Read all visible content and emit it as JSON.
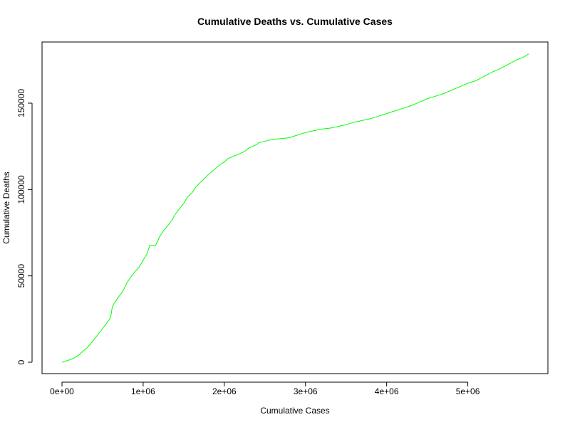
{
  "chart_data": {
    "type": "line",
    "title": "Cumulative Deaths vs. Cumulative Cases",
    "xlabel": "Cumulative Cases",
    "ylabel": "Cumulative Deaths",
    "xlim": [
      0,
      5750000
    ],
    "ylim": [
      0,
      178000
    ],
    "grid": false,
    "series": [
      {
        "color": "#00ff00",
        "x": [
          0,
          100000,
          150000,
          200000,
          250000,
          300000,
          350000,
          400000,
          450000,
          500000,
          550000,
          600000,
          620000,
          640000,
          700000,
          750000,
          800000,
          850000,
          900000,
          950000,
          1000000,
          1050000,
          1080000,
          1100000,
          1150000,
          1180000,
          1200000,
          1250000,
          1300000,
          1350000,
          1400000,
          1450000,
          1500000,
          1550000,
          1600000,
          1650000,
          1700000,
          1750000,
          1800000,
          1850000,
          1900000,
          1950000,
          2000000,
          2050000,
          2100000,
          2150000,
          2200000,
          2250000,
          2300000,
          2350000,
          2400000,
          2420000,
          2500000,
          2600000,
          2700000,
          2800000,
          2900000,
          3000000,
          3100000,
          3200000,
          3300000,
          3400000,
          3500000,
          3600000,
          3700000,
          3800000,
          3900000,
          4000000,
          4100000,
          4200000,
          4300000,
          4400000,
          4500000,
          4600000,
          4700000,
          4800000,
          4900000,
          5000000,
          5100000,
          5200000,
          5300000,
          5400000,
          5500000,
          5600000,
          5700000,
          5750000
        ],
        "values": [
          0,
          1500,
          2500,
          4000,
          6000,
          8000,
          10500,
          13500,
          16500,
          19500,
          22500,
          26000,
          32000,
          34000,
          38000,
          41000,
          46000,
          49500,
          52500,
          55000,
          59000,
          63000,
          67500,
          67800,
          67500,
          70000,
          72500,
          76000,
          79000,
          82000,
          86000,
          89000,
          92000,
          96000,
          98000,
          101500,
          104000,
          106000,
          108500,
          110500,
          112500,
          114500,
          116000,
          118000,
          119000,
          120000,
          121000,
          122000,
          124000,
          125000,
          126000,
          127000,
          128000,
          129000,
          129500,
          130000,
          131500,
          133000,
          134000,
          135000,
          135500,
          136500,
          137500,
          139000,
          140000,
          141000,
          142500,
          144000,
          145500,
          147000,
          148500,
          150500,
          152500,
          154000,
          155500,
          157500,
          159500,
          161500,
          163000,
          165500,
          168000,
          170000,
          172500,
          175000,
          177000,
          178500
        ]
      }
    ]
  },
  "x_ticks": [
    {
      "value": 0,
      "label": "0e+00"
    },
    {
      "value": 1000000,
      "label": "1e+06"
    },
    {
      "value": 2000000,
      "label": "2e+06"
    },
    {
      "value": 3000000,
      "label": "3e+06"
    },
    {
      "value": 4000000,
      "label": "4e+06"
    },
    {
      "value": 5000000,
      "label": "5e+06"
    }
  ],
  "y_ticks": [
    {
      "value": 0,
      "label": "0"
    },
    {
      "value": 50000,
      "label": "50000"
    },
    {
      "value": 100000,
      "label": "100000"
    },
    {
      "value": 150000,
      "label": "150000"
    }
  ]
}
